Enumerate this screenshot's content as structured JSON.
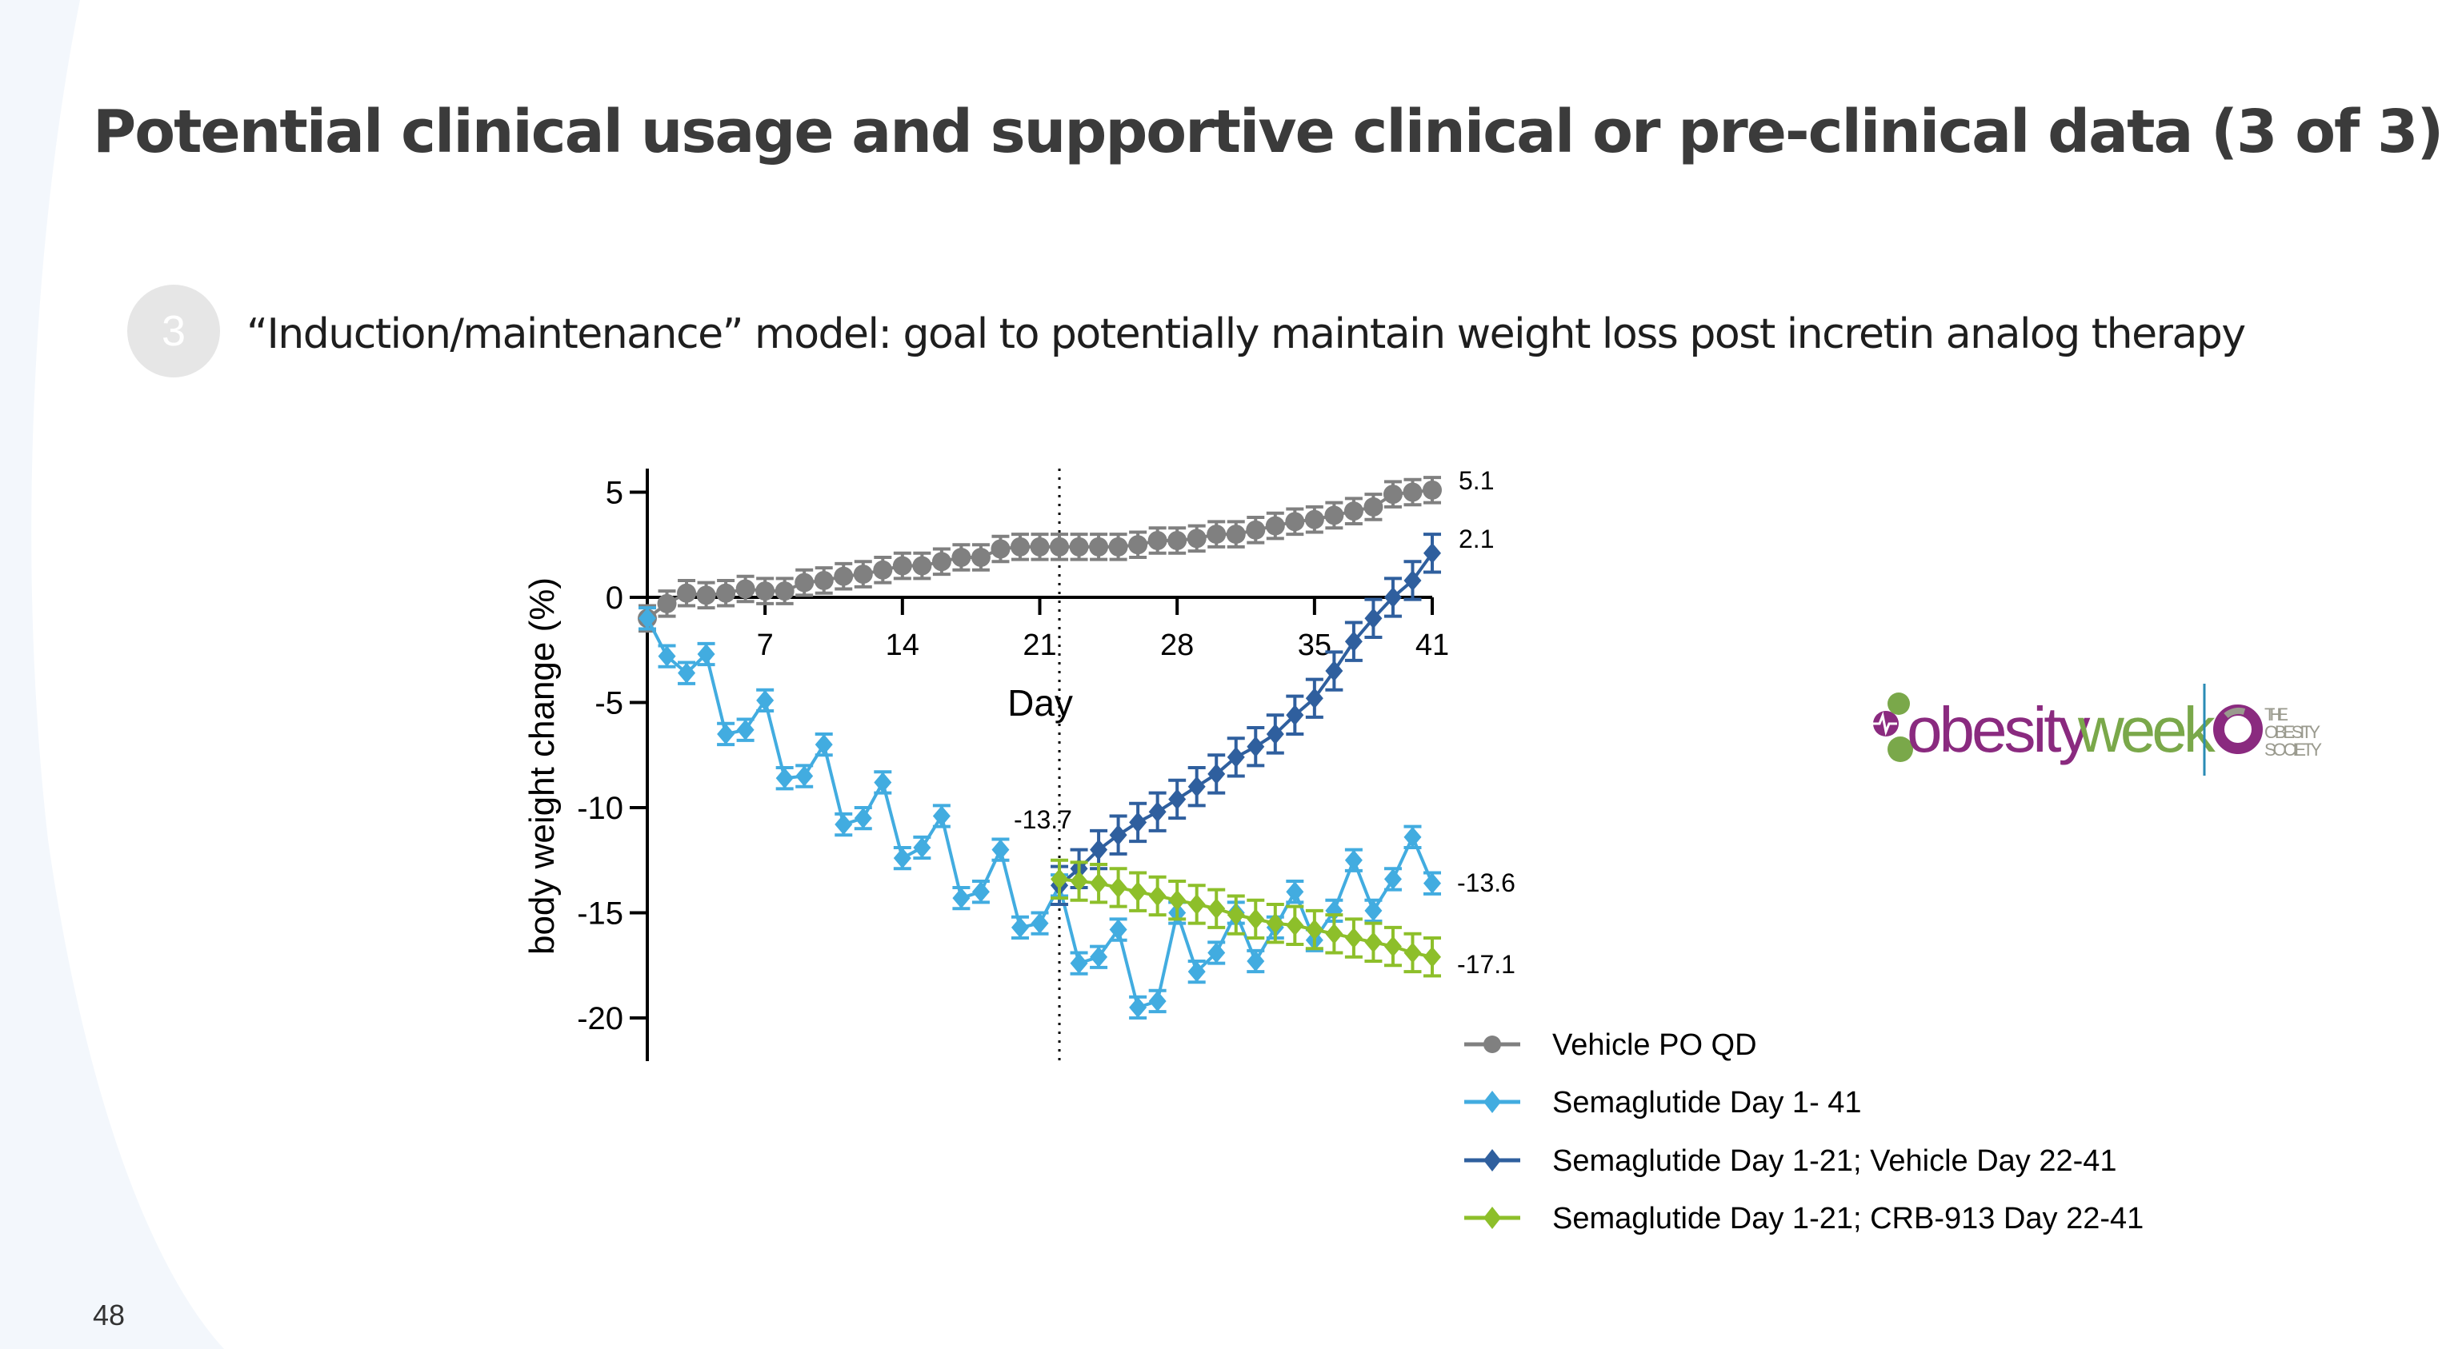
{
  "slide": {
    "title": "Potential clinical usage and supportive clinical or pre-clinical data (3 of 3)",
    "bullet_number": "3",
    "subtitle": "“Induction/maintenance” model: goal to potentially maintain weight loss post incretin analog therapy",
    "page_number": "48"
  },
  "logo": {
    "obesityweek_text": "obesityweek",
    "society_text": "THE OBESITY SOCIETY",
    "colors": {
      "purple": "#8a2a7f",
      "green": "#7aa84a",
      "divider": "#2a8bb5",
      "gray": "#9a9a8e"
    }
  },
  "chart_data": {
    "type": "line",
    "xlabel": "Day",
    "ylabel": "body weight change (%)",
    "xlim": [
      1,
      41
    ],
    "ylim": [
      -22,
      6
    ],
    "xticks": [
      7,
      14,
      21,
      28,
      35,
      41
    ],
    "yticks": [
      5,
      0,
      -5,
      -10,
      -15,
      -20
    ],
    "grid": false,
    "legend_position": "bottom-right",
    "reference_line": {
      "x": 22,
      "style": "dotted"
    },
    "annotations": [
      {
        "text": "5.1",
        "series": 0
      },
      {
        "text": "2.1",
        "series": 2
      },
      {
        "text": "-13.6",
        "series": 1
      },
      {
        "text": "-17.1",
        "series": 3
      },
      {
        "text": "-13.7",
        "day": 22
      }
    ],
    "series": [
      {
        "name": "Vehicle PO QD",
        "color": "#808080",
        "marker": "circle",
        "error": 0.6,
        "x": [
          1,
          2,
          3,
          4,
          5,
          6,
          7,
          8,
          9,
          10,
          11,
          12,
          13,
          14,
          15,
          16,
          17,
          18,
          19,
          20,
          21,
          22,
          23,
          24,
          25,
          26,
          27,
          28,
          29,
          30,
          31,
          32,
          33,
          34,
          35,
          36,
          37,
          38,
          39,
          40,
          41
        ],
        "y": [
          -1.0,
          -0.3,
          0.2,
          0.1,
          0.2,
          0.4,
          0.3,
          0.3,
          0.7,
          0.8,
          1.0,
          1.1,
          1.3,
          1.5,
          1.5,
          1.7,
          1.9,
          1.9,
          2.3,
          2.4,
          2.4,
          2.4,
          2.4,
          2.4,
          2.4,
          2.5,
          2.7,
          2.7,
          2.8,
          3.0,
          3.0,
          3.2,
          3.4,
          3.6,
          3.7,
          3.9,
          4.1,
          4.3,
          4.9,
          5.0,
          5.1
        ]
      },
      {
        "name": "Semaglutide Day 1- 41",
        "color": "#42ace0",
        "marker": "diamond",
        "error": 0.5,
        "x": [
          1,
          2,
          3,
          4,
          5,
          6,
          7,
          8,
          9,
          10,
          11,
          12,
          13,
          14,
          15,
          16,
          17,
          18,
          19,
          20,
          21,
          22,
          23,
          24,
          25,
          26,
          27,
          28,
          29,
          30,
          31,
          32,
          33,
          34,
          35,
          36,
          37,
          38,
          39,
          40,
          41
        ],
        "y": [
          -1.0,
          -2.8,
          -3.6,
          -2.7,
          -6.5,
          -6.3,
          -4.9,
          -8.6,
          -8.5,
          -7.0,
          -10.8,
          -10.5,
          -8.8,
          -12.4,
          -11.9,
          -10.4,
          -14.3,
          -14.0,
          -12.0,
          -15.7,
          -15.5,
          -13.7,
          -17.4,
          -17.1,
          -15.8,
          -19.5,
          -19.2,
          -15.0,
          -17.8,
          -16.9,
          -15.0,
          -17.3,
          -15.7,
          -14.0,
          -16.3,
          -14.9,
          -12.5,
          -14.9,
          -13.4,
          -11.4,
          -13.6
        ]
      },
      {
        "name": "Semaglutide Day 1-21; Vehicle Day 22-41",
        "color": "#2f5f9e",
        "marker": "diamond",
        "error": 0.9,
        "x": [
          22,
          23,
          24,
          25,
          26,
          27,
          28,
          29,
          30,
          31,
          32,
          33,
          34,
          35,
          36,
          37,
          38,
          39,
          40,
          41
        ],
        "y": [
          -13.7,
          -12.9,
          -12.0,
          -11.3,
          -10.7,
          -10.2,
          -9.6,
          -9.0,
          -8.4,
          -7.6,
          -7.1,
          -6.5,
          -5.6,
          -4.8,
          -3.5,
          -2.1,
          -1.0,
          0.0,
          0.8,
          2.1
        ]
      },
      {
        "name": "Semaglutide Day 1-21; CRB-913 Day 22-41",
        "color": "#8dbf2a",
        "marker": "diamond",
        "error": 0.9,
        "x": [
          22,
          23,
          24,
          25,
          26,
          27,
          28,
          29,
          30,
          31,
          32,
          33,
          34,
          35,
          36,
          37,
          38,
          39,
          40,
          41
        ],
        "y": [
          -13.4,
          -13.5,
          -13.6,
          -13.8,
          -14.0,
          -14.2,
          -14.4,
          -14.6,
          -14.8,
          -15.1,
          -15.3,
          -15.5,
          -15.6,
          -15.8,
          -16.0,
          -16.2,
          -16.4,
          -16.6,
          -16.9,
          -17.1
        ]
      }
    ]
  }
}
